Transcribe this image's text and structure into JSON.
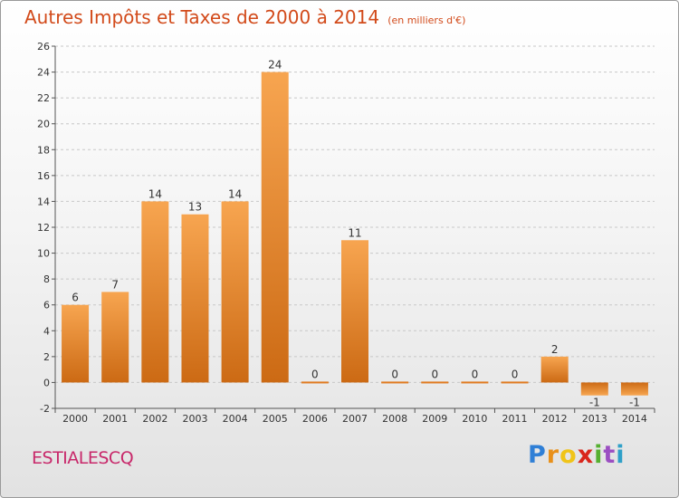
{
  "header": {
    "title": "Autres Impôts et Taxes de 2000 à 2014",
    "unit": "(en milliers d'€)"
  },
  "footer": {
    "commune": "ESTIALESCQ",
    "logo_letters": [
      "P",
      "r",
      "o",
      "x",
      "i",
      "t",
      "i"
    ],
    "logo_colors": [
      "#2f7fd6",
      "#e8901a",
      "#f0c419",
      "#d9261c",
      "#55b030",
      "#9b4fc2",
      "#2fa0c8"
    ]
  },
  "chart_data": {
    "type": "bar",
    "title": "Autres Impôts et Taxes de 2000 à 2014",
    "xlabel": "",
    "ylabel": "",
    "categories": [
      "2000",
      "2001",
      "2002",
      "2003",
      "2004",
      "2005",
      "2006",
      "2007",
      "2008",
      "2009",
      "2010",
      "2011",
      "2012",
      "2013",
      "2014"
    ],
    "values": [
      6,
      7,
      14,
      13,
      14,
      24,
      0,
      11,
      0,
      0,
      0,
      0,
      2,
      -1,
      -1
    ],
    "labels": [
      "6",
      "7",
      "14",
      "13",
      "14",
      "24",
      "0",
      "11",
      "0",
      "0",
      "0",
      "0",
      "2",
      "-1",
      "-1"
    ],
    "ylim": [
      -2,
      26
    ],
    "yticks": [
      -2,
      0,
      2,
      4,
      6,
      8,
      10,
      12,
      14,
      16,
      18,
      20,
      22,
      24,
      26
    ],
    "ytick_labels": [
      "-2",
      "0",
      "2",
      "4",
      "6",
      "8",
      "10",
      "12",
      "14",
      "16",
      "18",
      "20",
      "22",
      "24",
      "26"
    ],
    "bar_color": "#f08a2a",
    "grid": "horizontal dashed",
    "legend": "none"
  }
}
